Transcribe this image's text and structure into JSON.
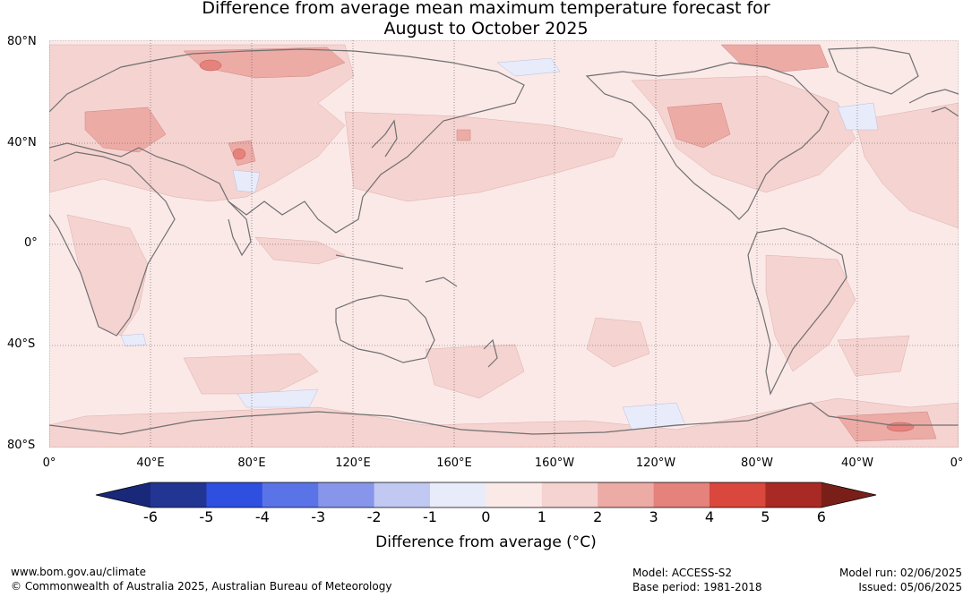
{
  "title_line1": "Difference from average mean maximum temperature forecast for",
  "title_line2": "August to October 2025",
  "lat_labels": [
    "80°N",
    "40°N",
    "0°",
    "40°S",
    "80°S"
  ],
  "lon_labels": [
    "0°",
    "40°E",
    "80°E",
    "120°E",
    "160°E",
    "160°W",
    "120°W",
    "80°W",
    "40°W",
    "0°"
  ],
  "colorbar": {
    "ticks": [
      "-6",
      "-5",
      "-4",
      "-3",
      "-2",
      "-1",
      "0",
      "1",
      "2",
      "3",
      "4",
      "5",
      "6"
    ],
    "colors": [
      "#233592",
      "#2e4fe0",
      "#5a73e6",
      "#8796ea",
      "#c1c8f2",
      "#e8ebfa",
      "#fbe9e8",
      "#f5d3d0",
      "#edaba6",
      "#e5827c",
      "#d9473d",
      "#a92a25"
    ],
    "below_color": "#1a287a",
    "above_color": "#7a1f18",
    "label": "Difference from average (°C)"
  },
  "footer": {
    "website": "www.bom.gov.au/climate",
    "copyright": "© Commonwealth of Australia 2025, Australian Bureau of Meteorology",
    "model": "Model: ACCESS-S2",
    "base_period": "Base period: 1981-2018",
    "model_run": "Model run: 02/06/2025",
    "issued": "Issued: 05/06/2025"
  }
}
